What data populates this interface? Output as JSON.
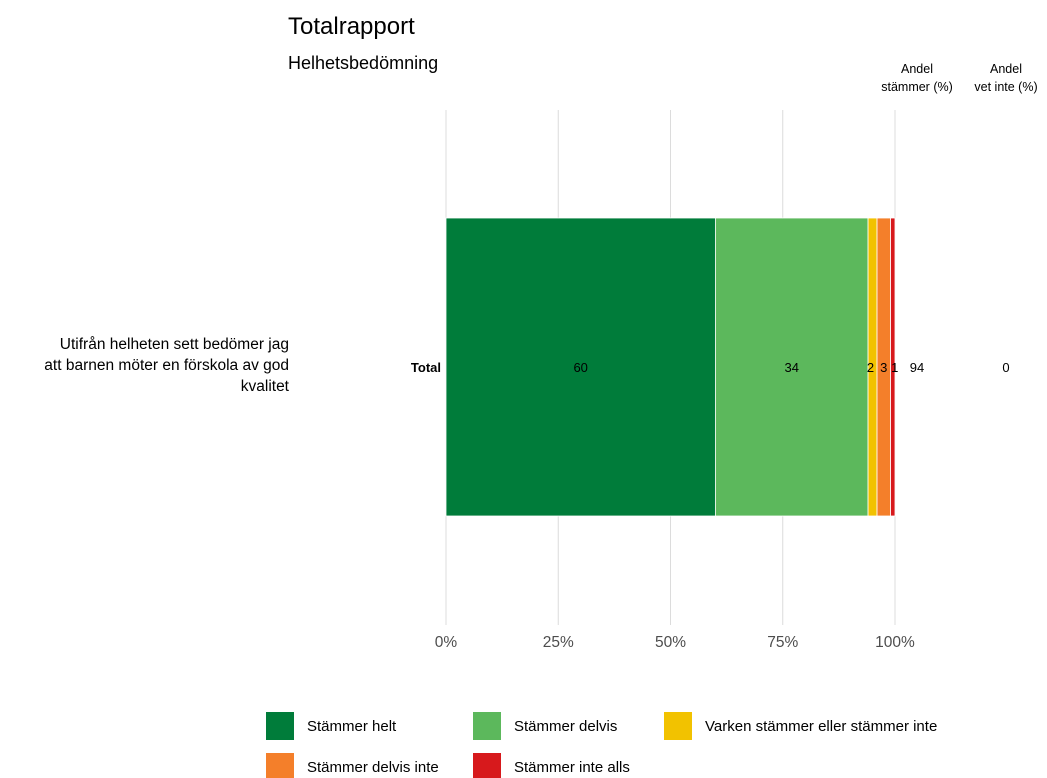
{
  "chart_data": {
    "type": "bar",
    "orientation": "horizontal",
    "stacked": true,
    "title": "Totalrapport",
    "subtitle": "Helhetsbedömning",
    "question": [
      "Utifrån helheten sett bedömer jag",
      "att barnen möter en förskola av god",
      "kvalitet"
    ],
    "categories": [
      "Total"
    ],
    "series": [
      {
        "name": "Stämmer helt",
        "color": "#007c3a",
        "values": [
          60
        ],
        "label": "60"
      },
      {
        "name": "Stämmer delvis",
        "color": "#5cb85c",
        "values": [
          34
        ],
        "label": "34"
      },
      {
        "name": "Varken stämmer eller stämmer inte",
        "color": "#f2c200",
        "values": [
          2
        ],
        "label": "2"
      },
      {
        "name": "Stämmer delvis inte",
        "color": "#f47f2a",
        "values": [
          3
        ],
        "label": "3"
      },
      {
        "name": "Stämmer inte alls",
        "color": "#d7191c",
        "values": [
          1
        ],
        "label": "1"
      }
    ],
    "extra_columns": [
      {
        "header": [
          "Andel",
          "stämmer (%)"
        ],
        "values": [
          "94"
        ]
      },
      {
        "header": [
          "Andel",
          "vet inte (%)"
        ],
        "values": [
          "0"
        ]
      }
    ],
    "xlim": [
      0,
      100
    ],
    "xticks": [
      "0%",
      "25%",
      "50%",
      "75%",
      "100%"
    ],
    "xtick_values": [
      0,
      25,
      50,
      75,
      100
    ],
    "grid": true,
    "legend_position": "bottom"
  }
}
